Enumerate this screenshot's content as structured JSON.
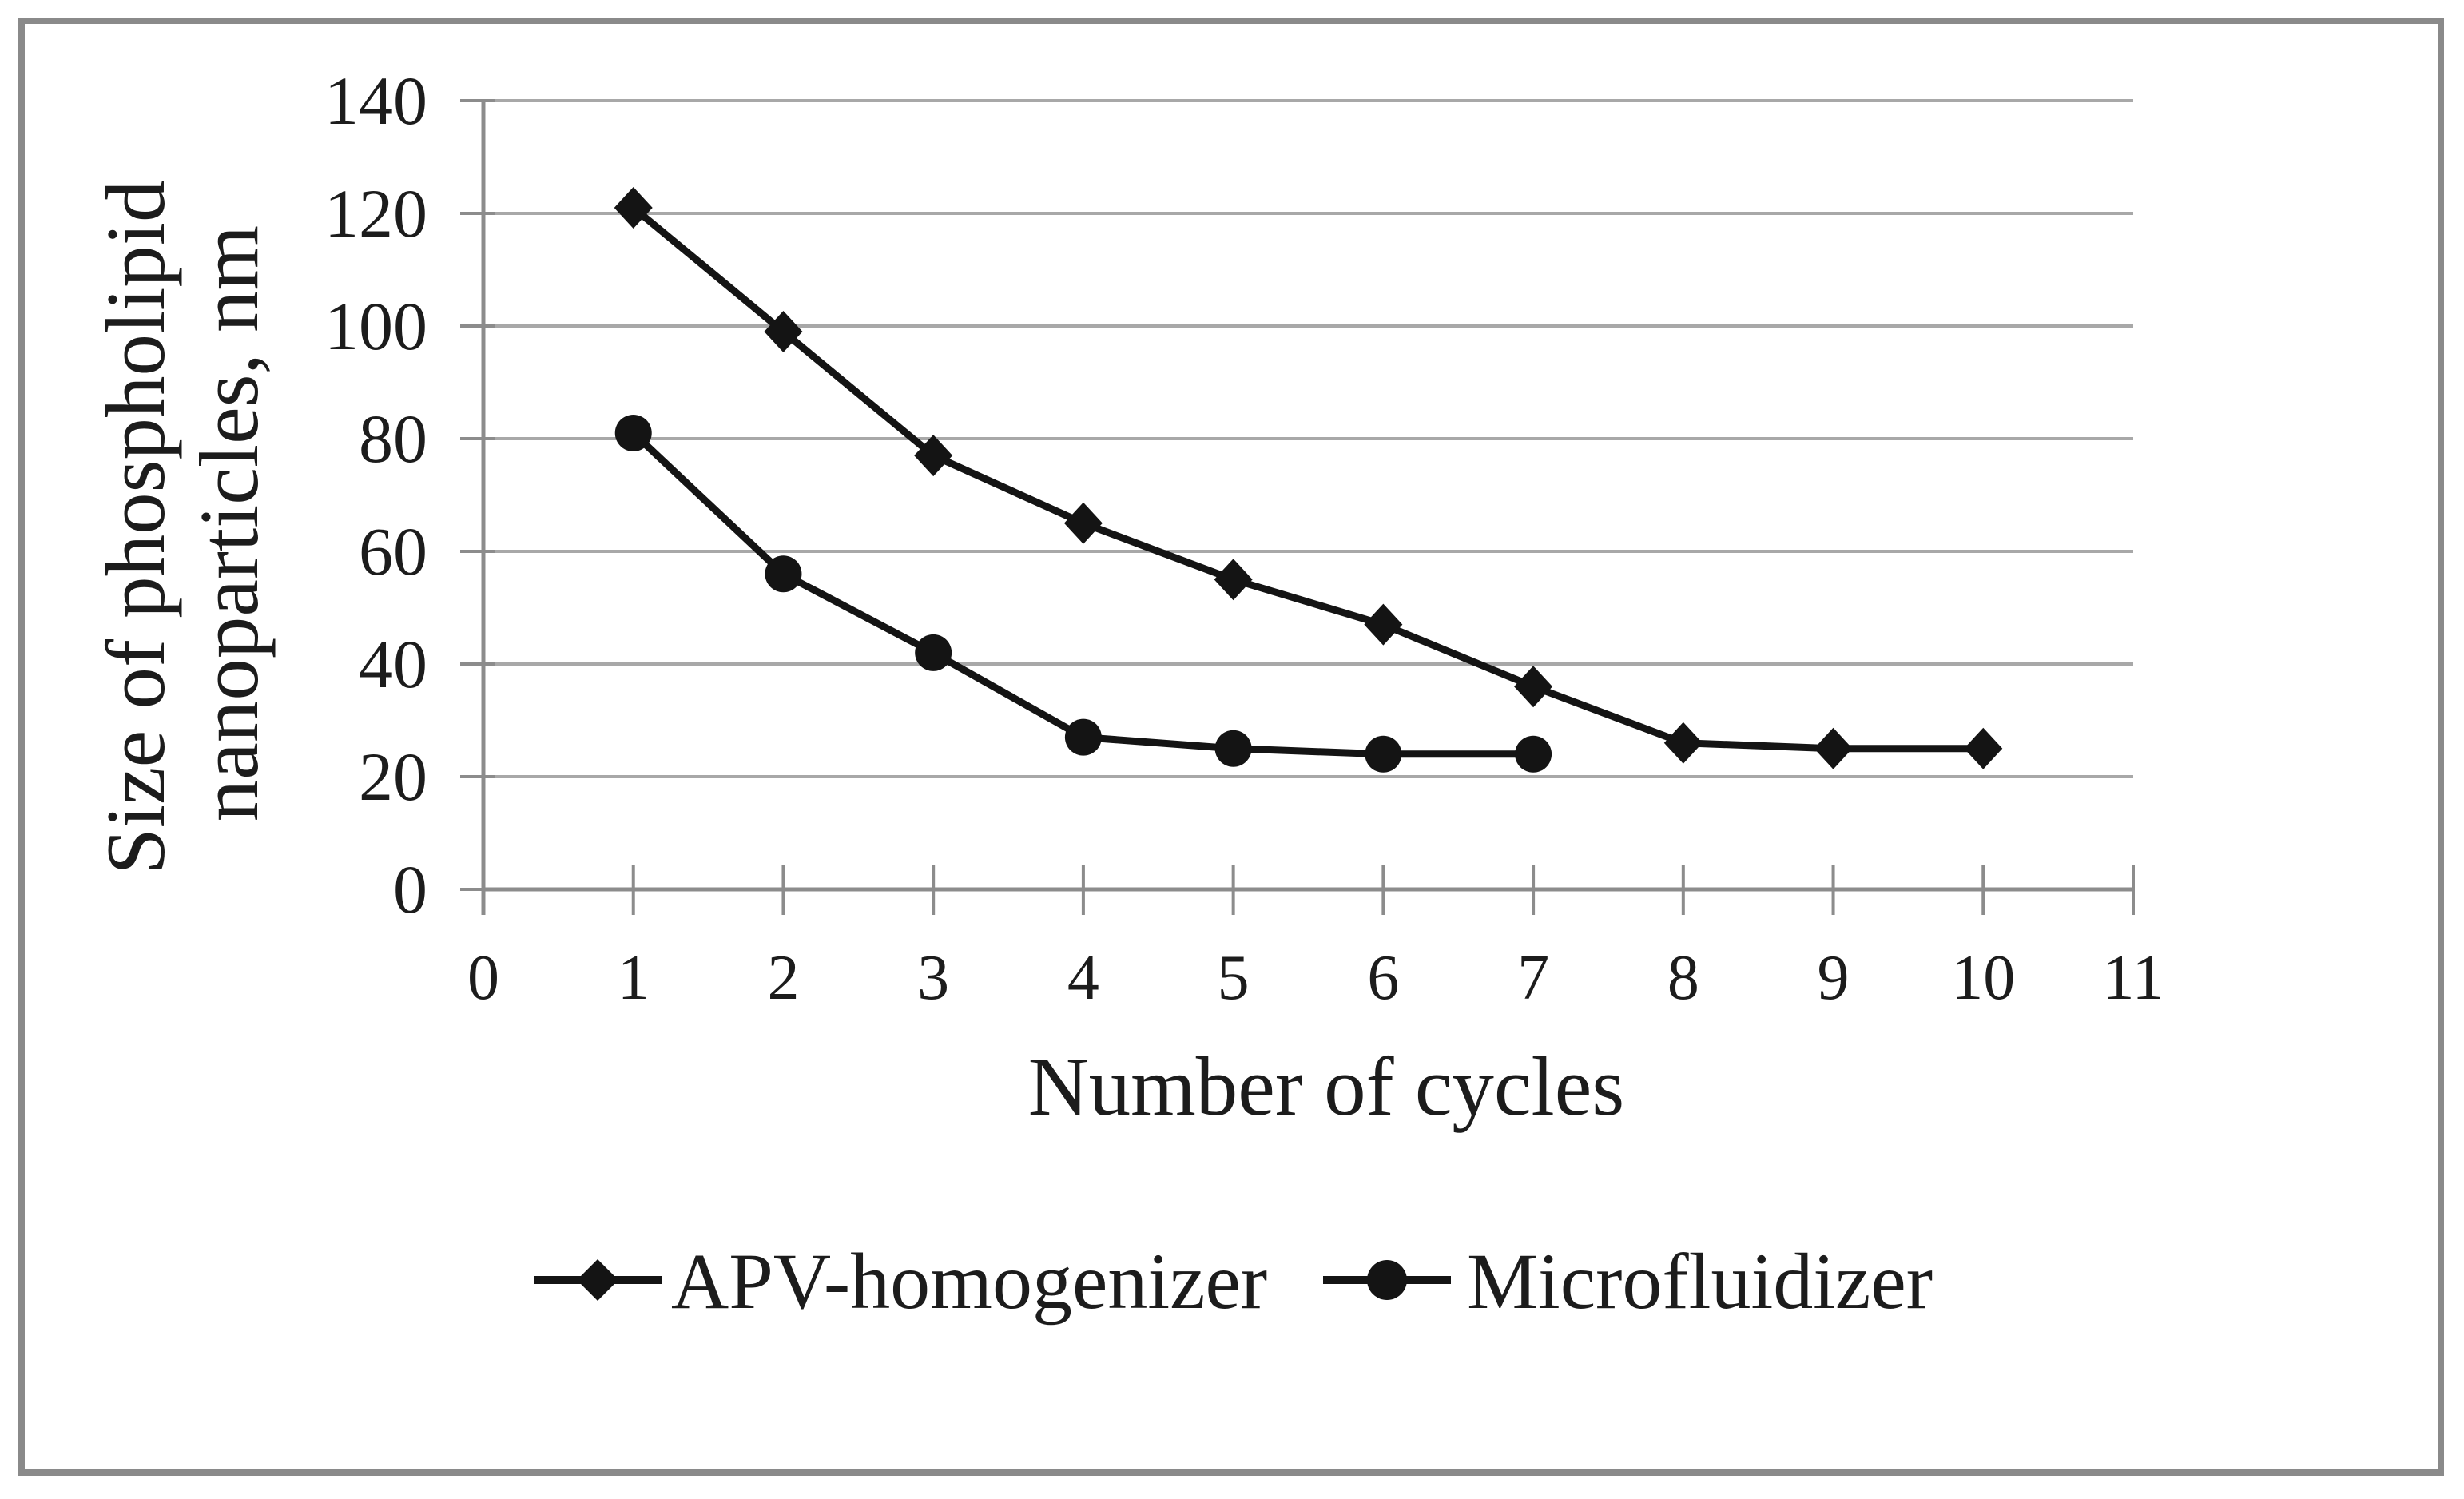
{
  "figure": {
    "background": "#ffffff",
    "border_color": "#8a8a8a"
  },
  "chart_data": {
    "type": "line",
    "title": "",
    "xlabel": "Number of cycles",
    "ylabel": "Size of phospholipid nanoparticles, nm",
    "ylabel_line1": "Size of phospholipid",
    "ylabel_line2": "nanoparticles, nm",
    "xlim": [
      0,
      11
    ],
    "ylim": [
      0,
      140
    ],
    "x_ticks": [
      "0",
      "1",
      "2",
      "3",
      "4",
      "5",
      "6",
      "7",
      "8",
      "9",
      "10",
      "11"
    ],
    "y_ticks": [
      "0",
      "20",
      "40",
      "60",
      "80",
      "100",
      "120",
      "140"
    ],
    "grid": "horizontal gridlines only",
    "legend_position": "bottom-center",
    "series": [
      {
        "name": "APV-homogenizer",
        "marker": "diamond",
        "color": "#141414",
        "x": [
          1,
          2,
          3,
          4,
          5,
          6,
          7,
          8,
          9,
          10
        ],
        "values": [
          121,
          99,
          77,
          65,
          55,
          47,
          36,
          26,
          25,
          25
        ]
      },
      {
        "name": "Microfluidizer",
        "marker": "circle",
        "color": "#141414",
        "x": [
          1,
          2,
          3,
          4,
          5,
          6,
          7
        ],
        "values": [
          81,
          56,
          42,
          27,
          25,
          24,
          24
        ]
      }
    ],
    "colors": {
      "gridline": "#a8a8a8",
      "axis": "#8c8c8c",
      "tick": "#8c8c8c",
      "text": "#1c1c1c",
      "series": "#141414"
    }
  }
}
